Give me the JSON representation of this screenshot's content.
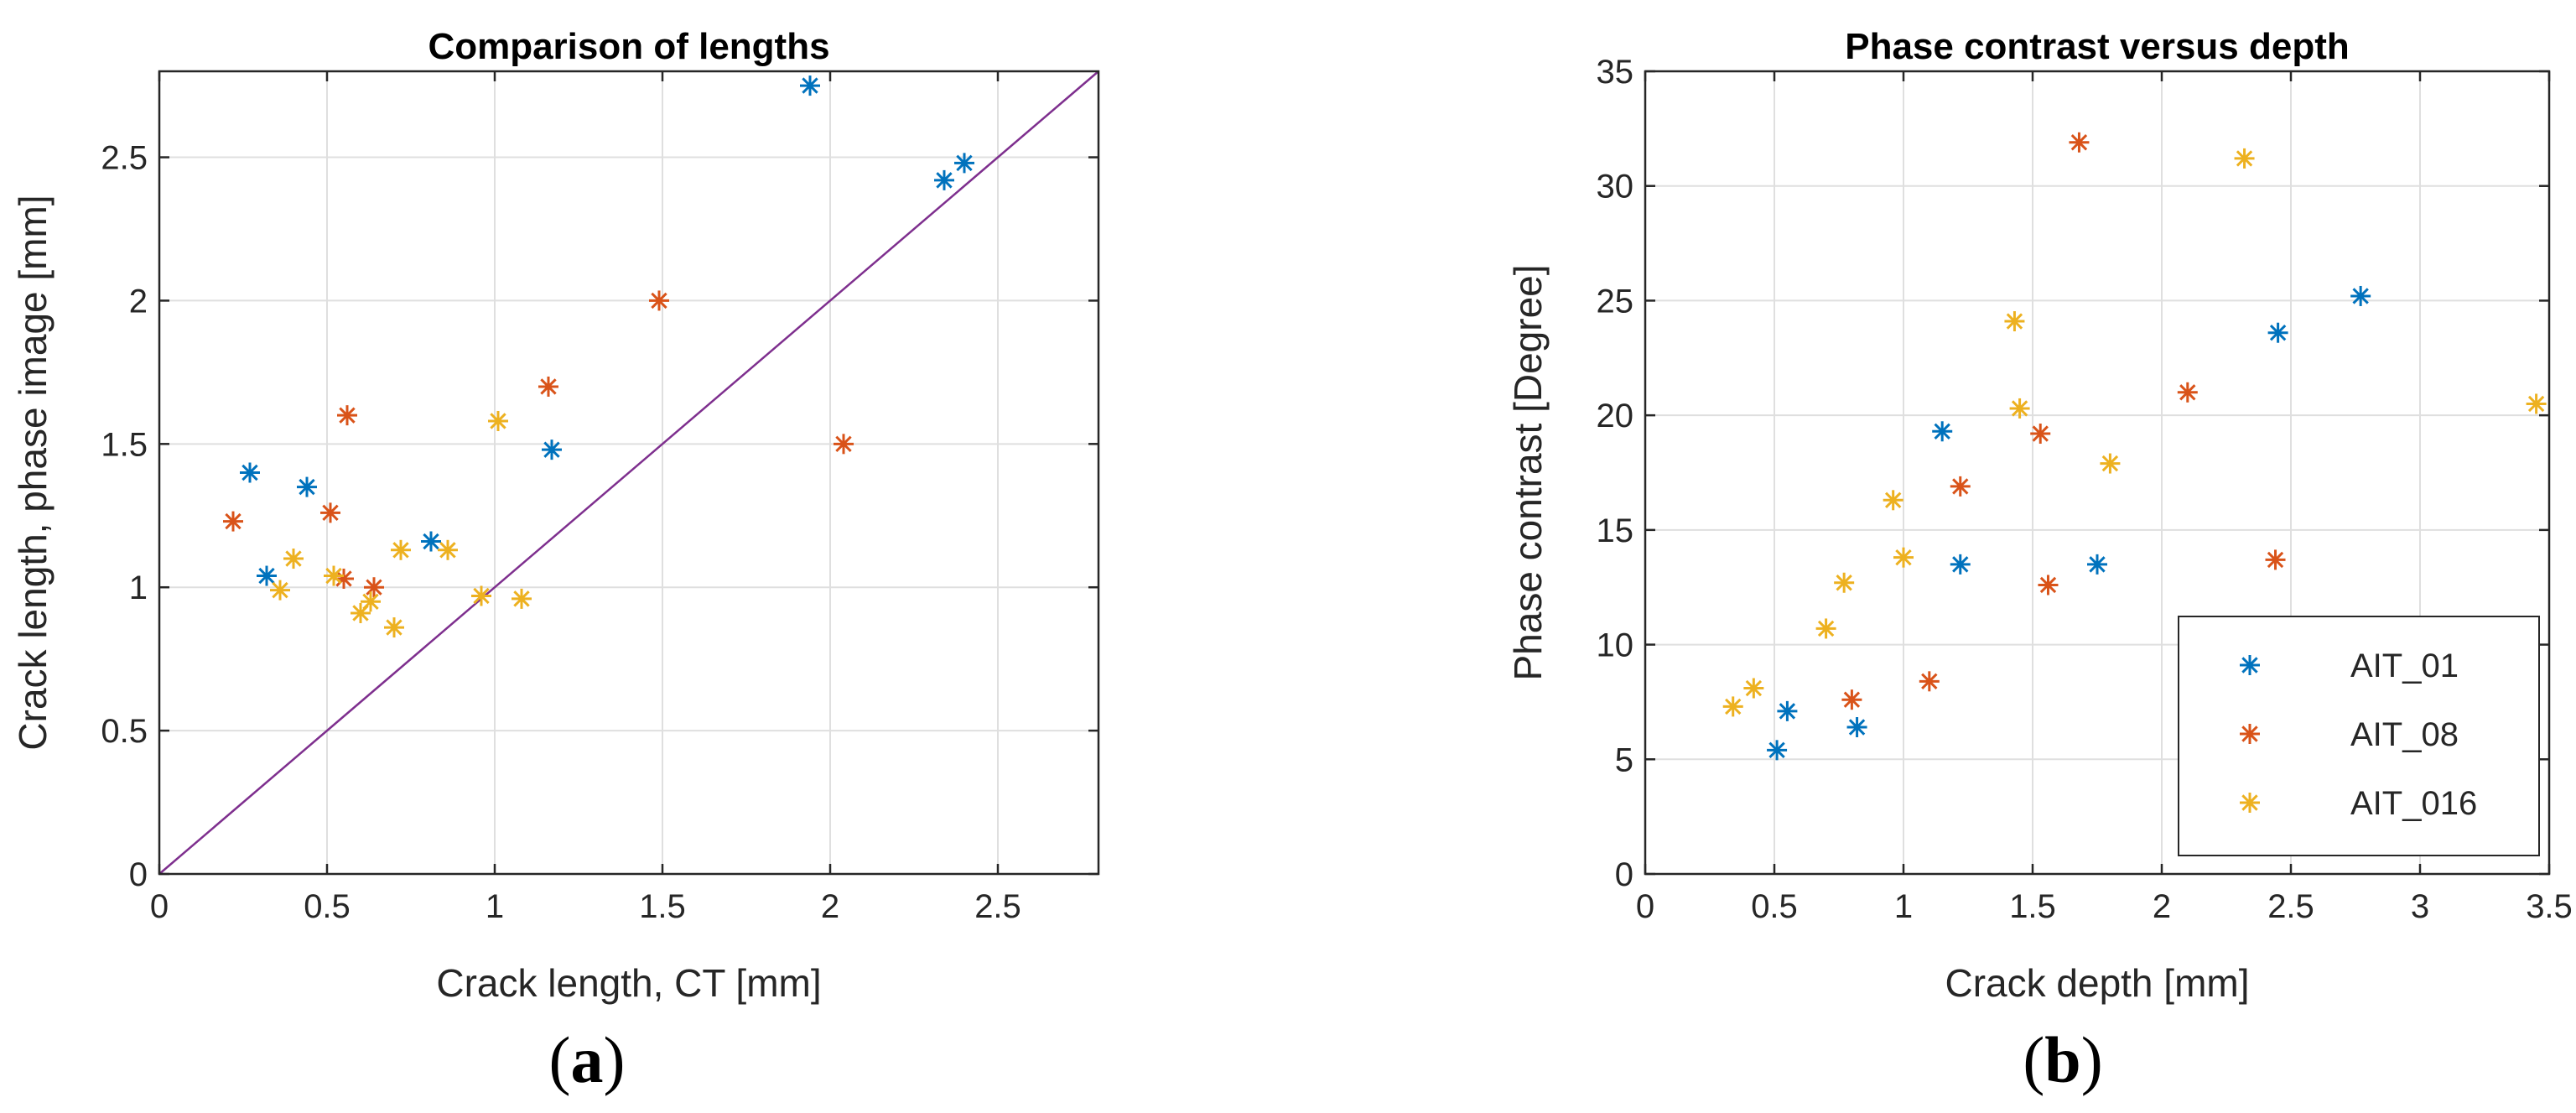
{
  "chart_data": [
    {
      "type": "scatter",
      "title": "Comparison of lengths",
      "xlabel": "Crack length, CT [mm]",
      "ylabel": "Crack length, phase image [mm]",
      "xlim": [
        0,
        2.8
      ],
      "ylim": [
        0,
        2.8
      ],
      "xticks": [
        0,
        0.5,
        1,
        1.5,
        2,
        2.5
      ],
      "yticks": [
        0,
        0.5,
        1,
        1.5,
        2,
        2.5
      ],
      "xtick_labels": [
        "0",
        "0.5",
        "1",
        "1.5",
        "2",
        "2.5"
      ],
      "ytick_labels": [
        "0",
        "0.5",
        "1",
        "1.5",
        "2",
        "2.5"
      ],
      "grid": true,
      "reference_line": {
        "x": [
          0,
          2.8
        ],
        "y": [
          0,
          2.8
        ],
        "color": "#7E2F8E"
      },
      "marker": "asterisk",
      "subfigure_label": "a",
      "series": [
        {
          "name": "AIT_01",
          "color": "#0072BD",
          "points": [
            [
              0.27,
              1.4
            ],
            [
              0.32,
              1.04
            ],
            [
              0.44,
              1.35
            ],
            [
              0.81,
              1.16
            ],
            [
              1.17,
              1.48
            ],
            [
              1.94,
              2.75
            ],
            [
              2.34,
              2.42
            ],
            [
              2.4,
              2.48
            ]
          ]
        },
        {
          "name": "AIT_08",
          "color": "#D95319",
          "points": [
            [
              0.22,
              1.23
            ],
            [
              0.51,
              1.26
            ],
            [
              0.55,
              1.03
            ],
            [
              0.56,
              1.6
            ],
            [
              0.64,
              1.0
            ],
            [
              1.16,
              1.7
            ],
            [
              1.49,
              2.0
            ],
            [
              2.04,
              1.5
            ]
          ]
        },
        {
          "name": "AIT_016",
          "color": "#EDB120",
          "points": [
            [
              0.36,
              0.99
            ],
            [
              0.4,
              1.1
            ],
            [
              0.52,
              1.04
            ],
            [
              0.6,
              0.91
            ],
            [
              0.63,
              0.95
            ],
            [
              0.7,
              0.86
            ],
            [
              0.72,
              1.13
            ],
            [
              0.86,
              1.13
            ],
            [
              0.96,
              0.97
            ],
            [
              1.01,
              1.58
            ],
            [
              1.08,
              0.96
            ]
          ]
        }
      ]
    },
    {
      "type": "scatter",
      "title": "Phase contrast versus depth",
      "xlabel": "Crack depth [mm]",
      "ylabel": "Phase contrast [Degree]",
      "xlim": [
        0,
        3.5
      ],
      "ylim": [
        0,
        35
      ],
      "xticks": [
        0,
        0.5,
        1,
        1.5,
        2,
        2.5,
        3,
        3.5
      ],
      "yticks": [
        0,
        5,
        10,
        15,
        20,
        25,
        30,
        35
      ],
      "xtick_labels": [
        "0",
        "0.5",
        "1",
        "1.5",
        "2",
        "2.5",
        "3",
        "3.5"
      ],
      "ytick_labels": [
        "0",
        "5",
        "10",
        "15",
        "20",
        "25",
        "30",
        "35"
      ],
      "grid": true,
      "legend_position": "bottom-right",
      "marker": "asterisk",
      "subfigure_label": "b",
      "series": [
        {
          "name": "AIT_01",
          "color": "#0072BD",
          "points": [
            [
              0.51,
              5.4
            ],
            [
              0.55,
              7.1
            ],
            [
              0.82,
              6.4
            ],
            [
              1.15,
              19.3
            ],
            [
              1.22,
              13.5
            ],
            [
              1.75,
              13.5
            ],
            [
              2.45,
              23.6
            ],
            [
              2.77,
              25.2
            ]
          ]
        },
        {
          "name": "AIT_08",
          "color": "#D95319",
          "points": [
            [
              0.8,
              7.6
            ],
            [
              1.1,
              8.4
            ],
            [
              1.22,
              16.9
            ],
            [
              1.53,
              19.2
            ],
            [
              1.56,
              12.6
            ],
            [
              1.68,
              31.9
            ],
            [
              2.1,
              21.0
            ],
            [
              2.44,
              13.7
            ]
          ]
        },
        {
          "name": "AIT_016",
          "color": "#EDB120",
          "points": [
            [
              0.34,
              7.3
            ],
            [
              0.42,
              8.1
            ],
            [
              0.7,
              10.7
            ],
            [
              0.77,
              12.7
            ],
            [
              0.96,
              16.3
            ],
            [
              1.0,
              13.8
            ],
            [
              1.43,
              24.1
            ],
            [
              1.45,
              20.3
            ],
            [
              1.8,
              17.9
            ],
            [
              2.32,
              31.2
            ],
            [
              3.45,
              20.5
            ]
          ]
        }
      ]
    }
  ]
}
